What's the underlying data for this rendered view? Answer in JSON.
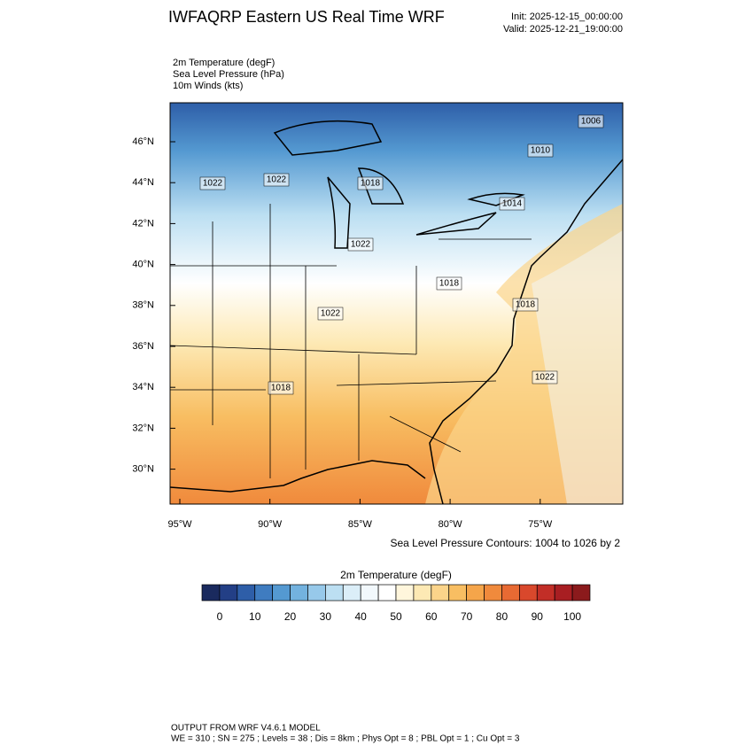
{
  "header": {
    "title": "IWFAQRP Eastern US Real Time WRF",
    "init": "Init: 2025-12-15_00:00:00",
    "valid": "Valid: 2025-12-21_19:00:00"
  },
  "fields": [
    "2m Temperature   (degF)",
    "Sea Level Pressure   (hPa)",
    "10m Winds   (kts)"
  ],
  "map": {
    "lat_labels": [
      "46°N",
      "44°N",
      "42°N",
      "40°N",
      "38°N",
      "36°N",
      "34°N",
      "32°N",
      "30°N"
    ],
    "lon_labels": [
      "95°W",
      "90°W",
      "85°W",
      "80°W",
      "75°W"
    ],
    "contour_labels": [
      1006,
      1010,
      1022,
      1022,
      1018,
      1014,
      1022,
      1018,
      1018,
      1022,
      1018,
      1022
    ],
    "contour_note": "Sea Level Pressure Contours: 1004 to 1026 by 2"
  },
  "colorbar": {
    "title": "2m Temperature  (degF)",
    "range": [
      -5,
      105
    ],
    "ticks": [
      0,
      10,
      20,
      30,
      40,
      50,
      60,
      70,
      80,
      90,
      100
    ],
    "colors": [
      "#1a2a5e",
      "#233f86",
      "#2e5ea8",
      "#3f7cc0",
      "#5499d1",
      "#73b2df",
      "#97c9ea",
      "#bcdff2",
      "#dbeef8",
      "#f2f8fc",
      "#ffffff",
      "#fff6dc",
      "#fde9b4",
      "#fbd48a",
      "#f8be62",
      "#f5a54a",
      "#f08a3c",
      "#e86a33",
      "#d9482c",
      "#c22e27",
      "#a81e22",
      "#8b1a1c"
    ]
  },
  "footer": {
    "line1": "OUTPUT FROM WRF V4.6.1 MODEL",
    "line2": "WE = 310 ; SN = 275 ; Levels = 38 ; Dis = 8km ; Phys Opt = 8 ; PBL Opt = 1 ; Cu Opt = 3"
  }
}
